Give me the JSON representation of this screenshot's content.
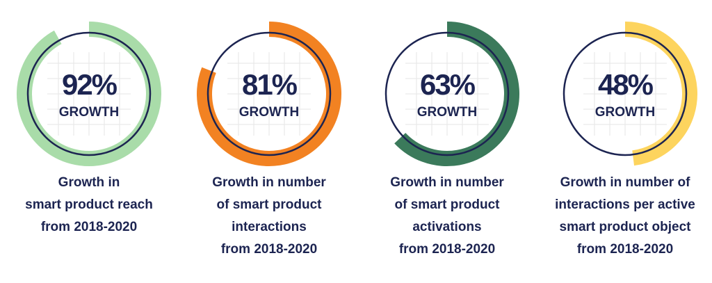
{
  "chart_data": [
    {
      "type": "radial",
      "values": [
        92
      ],
      "value_labels": [
        "92%"
      ],
      "ylim": [
        0,
        100
      ],
      "subtitle": "GROWTH",
      "color": "#a9dca9",
      "caption": [
        "Growth in",
        "smart product reach",
        "from 2018-2020"
      ]
    },
    {
      "type": "radial",
      "values": [
        81
      ],
      "value_labels": [
        "81%"
      ],
      "ylim": [
        0,
        100
      ],
      "subtitle": "GROWTH",
      "color": "#f28222",
      "caption": [
        "Growth in number",
        "of smart product",
        "interactions",
        "from 2018-2020"
      ]
    },
    {
      "type": "radial",
      "values": [
        63
      ],
      "value_labels": [
        "63%"
      ],
      "ylim": [
        0,
        100
      ],
      "subtitle": "GROWTH",
      "color": "#3b7a5b",
      "caption": [
        "Growth in number",
        "of smart product",
        "activations",
        "from 2018-2020"
      ]
    },
    {
      "type": "radial",
      "values": [
        48
      ],
      "value_labels": [
        "48%"
      ],
      "ylim": [
        0,
        100
      ],
      "subtitle": "GROWTH",
      "color": "#fdd45e",
      "caption": [
        "Growth in number of",
        "interactions per active",
        "smart product object",
        "from 2018-2020"
      ]
    }
  ]
}
